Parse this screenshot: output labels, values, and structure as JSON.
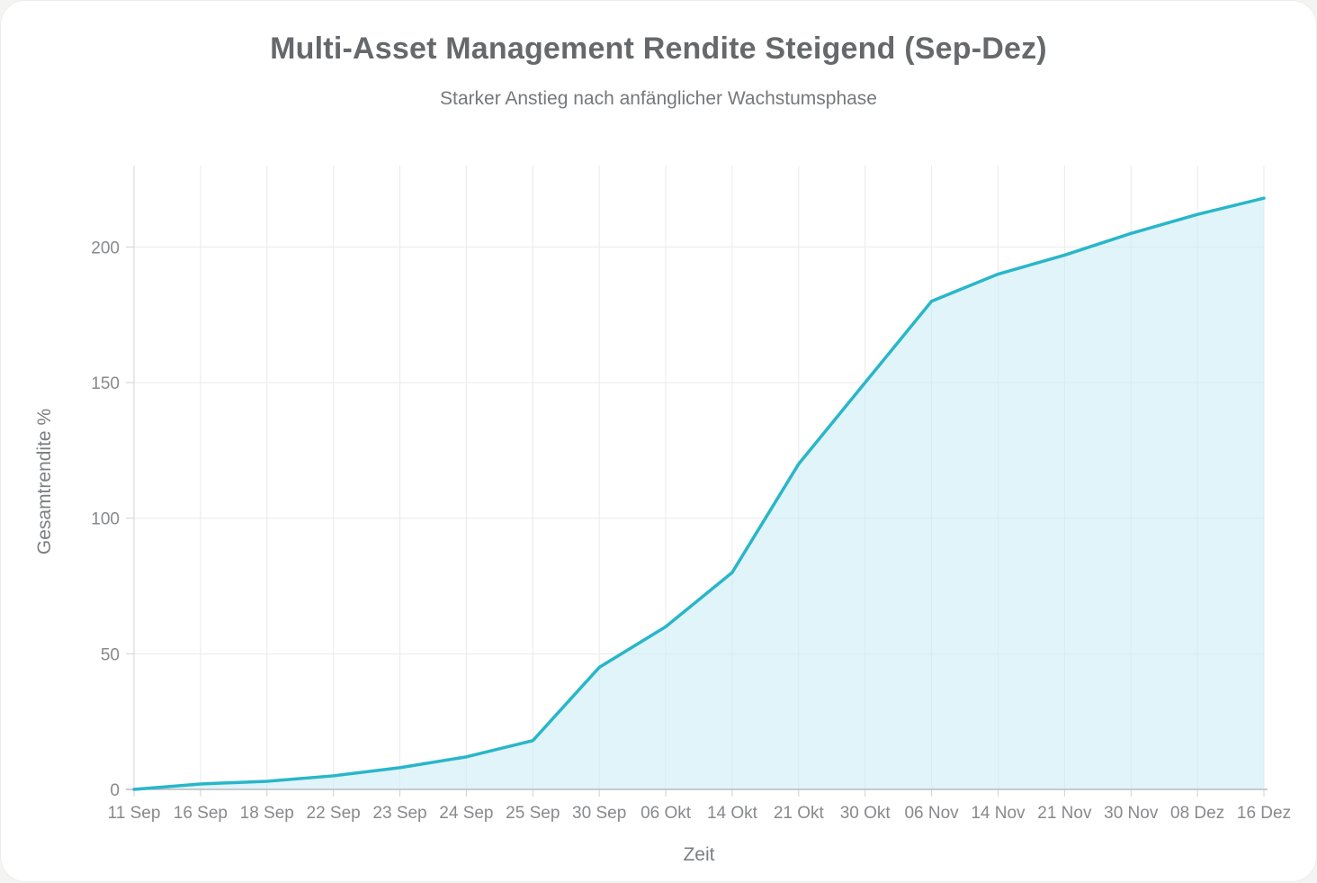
{
  "chart_data": {
    "type": "area",
    "title": "Multi-Asset Management Rendite Steigend (Sep-Dez)",
    "subtitle": "Starker Anstieg nach anfänglicher Wachstumsphase",
    "xlabel": "Zeit",
    "ylabel": "Gesamtrendite %",
    "categories": [
      "11 Sep",
      "16 Sep",
      "18 Sep",
      "22 Sep",
      "23 Sep",
      "24 Sep",
      "25 Sep",
      "30 Sep",
      "06 Okt",
      "14 Okt",
      "21 Okt",
      "30 Okt",
      "06 Nov",
      "14 Nov",
      "21 Nov",
      "30 Nov",
      "08 Dez",
      "16 Dez"
    ],
    "values": [
      0,
      2,
      3,
      5,
      8,
      12,
      18,
      45,
      60,
      80,
      120,
      150,
      180,
      190,
      197,
      205,
      212,
      218
    ],
    "ylim": [
      0,
      230
    ],
    "yticks": [
      0,
      50,
      100,
      150,
      200
    ],
    "grid": true,
    "legend": "none",
    "colors": {
      "line": "#29b6c9",
      "fill": "#ccedf5",
      "grid": "#e9eaeb",
      "y_axis_line": "#d2d4d6",
      "x_axis_line": "#b9bcbf",
      "tick_mark": "#cfd1d3"
    }
  }
}
